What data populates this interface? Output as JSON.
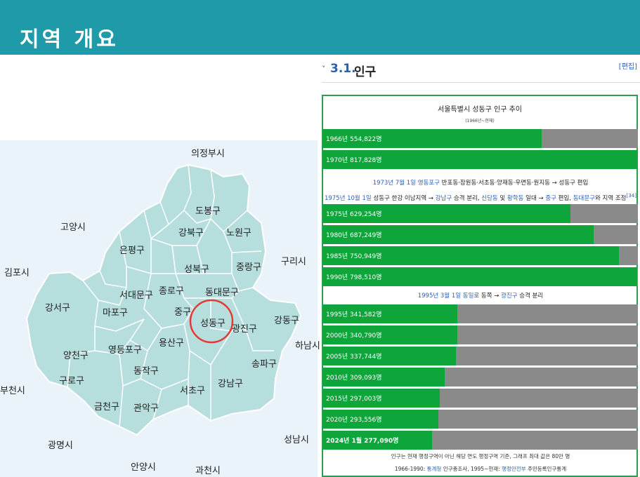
{
  "slide": {
    "title": "지역 개요"
  },
  "map": {
    "highlight_color": "#e53935",
    "district_color": "#b5dedd",
    "labels": [
      {
        "id": "uijeongbu",
        "text": "의정부시"
      },
      {
        "id": "dobong",
        "text": "도봉구"
      },
      {
        "id": "goyang",
        "text": "고양시"
      },
      {
        "id": "gangbuk",
        "text": "강북구"
      },
      {
        "id": "nowon",
        "text": "노원구"
      },
      {
        "id": "eunpyeong",
        "text": "은평구"
      },
      {
        "id": "guri",
        "text": "구리시"
      },
      {
        "id": "gimpo",
        "text": "김포시"
      },
      {
        "id": "seongbuk",
        "text": "성북구"
      },
      {
        "id": "jungnang",
        "text": "중랑구"
      },
      {
        "id": "seodaemun",
        "text": "서대문구"
      },
      {
        "id": "jongno",
        "text": "종로구"
      },
      {
        "id": "dongdaemun",
        "text": "동대문구"
      },
      {
        "id": "gangseo",
        "text": "강서구"
      },
      {
        "id": "mapo",
        "text": "마포구"
      },
      {
        "id": "jung",
        "text": "중구"
      },
      {
        "id": "seongdong",
        "text": "성동구"
      },
      {
        "id": "gwangjin",
        "text": "광진구"
      },
      {
        "id": "gangdong",
        "text": "강동구"
      },
      {
        "id": "yongsan",
        "text": "용산구"
      },
      {
        "id": "hanam",
        "text": "하남시"
      },
      {
        "id": "yangcheon",
        "text": "양천구"
      },
      {
        "id": "yeongdeungpo",
        "text": "영등포구"
      },
      {
        "id": "dongjak",
        "text": "동작구"
      },
      {
        "id": "songpa",
        "text": "송파구"
      },
      {
        "id": "bucheon",
        "text": "부천시"
      },
      {
        "id": "guro",
        "text": "구로구"
      },
      {
        "id": "seocho",
        "text": "서초구"
      },
      {
        "id": "gangnam",
        "text": "강남구"
      },
      {
        "id": "geumcheon",
        "text": "금천구"
      },
      {
        "id": "gwanak",
        "text": "관악구"
      },
      {
        "id": "gwangmyeong",
        "text": "광명시"
      },
      {
        "id": "seongnam",
        "text": "성남시"
      },
      {
        "id": "anyang",
        "text": "안양시"
      },
      {
        "id": "gwacheon",
        "text": "과천시"
      }
    ]
  },
  "section": {
    "chevron": "˅",
    "number": "3.1.",
    "title": "인구",
    "edit": "[편집]"
  },
  "population_table": {
    "title": "서울특별시 성동구 인구 추이",
    "subtitle": "(1966년~현재)",
    "bar_color": "#0ea53a",
    "track_color": "#8a8a8a",
    "rows_a": [
      {
        "label": "1966년 554,822명",
        "value": 554822
      },
      {
        "label": "1970년 817,828명",
        "value": 817828
      }
    ],
    "note_1": {
      "a": "1973년 7월 1일 영동포구",
      "b": " 반포동·잠원동·서초동·양재동·우면동·원지동 → ",
      "c": "성동구",
      "d": " 편입"
    },
    "note_2": {
      "a": "1975년 10월 1일",
      "b": " 성동구 한강 이남지역 → ",
      "c": "강남구",
      "d": " 승격 분리, ",
      "e": "신당동",
      "f": " 및 ",
      "g": "황학동",
      "h": " 일대 → ",
      "i": "중구",
      "j": " 편입, ",
      "k": "동대문구",
      "l": "와 지역 조정",
      "m": "[34]"
    },
    "rows_b": [
      {
        "label": "1975년 629,254명",
        "value": 629254
      },
      {
        "label": "1980년 687,249명",
        "value": 687249
      },
      {
        "label": "1985년 750,949명",
        "value": 750949
      },
      {
        "label": "1990년 798,510명",
        "value": 798510
      }
    ],
    "note_3": {
      "a": "1995년 3월 1일 동일로",
      "b": " 동쪽 → ",
      "c": "광진구",
      "d": " 승격 분리"
    },
    "rows_c": [
      {
        "label": "1995년 341,582명",
        "value": 341582
      },
      {
        "label": "2000년 340,790명",
        "value": 340790
      },
      {
        "label": "2005년 337,744명",
        "value": 337744
      },
      {
        "label": "2010년 309,093명",
        "value": 309093
      },
      {
        "label": "2015년 297,003명",
        "value": 297003
      },
      {
        "label": "2020년 293,556명",
        "value": 293556
      },
      {
        "label": "2024년 1월 277,090명",
        "value": 277090
      }
    ],
    "footer_1": "인구는 현재 행정구역이 아닌 해당 연도 행정구역 기준, 그래프 최대 값은 80만 명",
    "footer_2": {
      "a": "1966-1990: ",
      "b": "통계청",
      "c": " 인구총조사, 1995~현재: ",
      "d": "행정안전부",
      "e": " 주민등록인구통계"
    },
    "scale_max": 800000
  }
}
